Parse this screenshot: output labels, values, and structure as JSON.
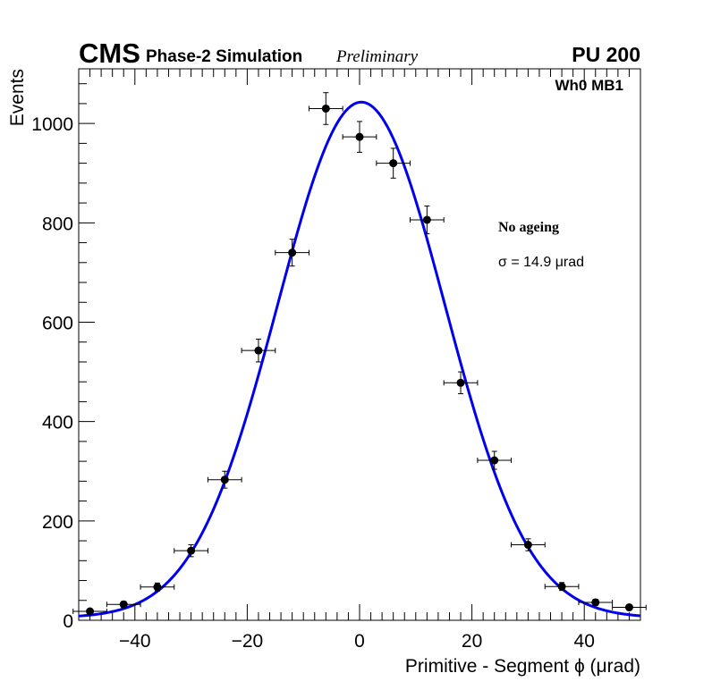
{
  "chart_data": {
    "type": "scatter",
    "experiment": "CMS",
    "subtitle": "Phase-2 Simulation",
    "status": "Preliminary",
    "pileup": "PU 200",
    "region": "Wh0 MB1",
    "condition": "No ageing",
    "sigma_label": "σ = 14.9  μrad",
    "xlabel": "Primitive - Segment ϕ (μrad)",
    "ylabel": "Events",
    "xlim": [
      -50,
      50
    ],
    "ylim": [
      0,
      1110
    ],
    "xticks": [
      -40,
      -20,
      0,
      20,
      40
    ],
    "xtick_labels": [
      "−40",
      "−20",
      "0",
      "20",
      "40"
    ],
    "yticks": [
      0,
      200,
      400,
      600,
      800,
      1000
    ],
    "ytick_labels": [
      "0",
      "200",
      "400",
      "600",
      "800",
      "1000"
    ],
    "bin_width": 6,
    "series": [
      {
        "name": "data",
        "color": "#000000",
        "x": [
          -48,
          -42,
          -36,
          -30,
          -24,
          -18,
          -12,
          -6,
          0,
          6,
          12,
          18,
          24,
          30,
          36,
          42,
          48
        ],
        "y": [
          18,
          32,
          67,
          140,
          283,
          543,
          740,
          1030,
          973,
          920,
          806,
          478,
          322,
          152,
          68,
          36,
          26
        ],
        "yerr": [
          4,
          6,
          8,
          12,
          17,
          23,
          27,
          32,
          31,
          30,
          28,
          22,
          18,
          12,
          8,
          6,
          5
        ]
      },
      {
        "name": "gaussian fit",
        "color": "#0000ee",
        "fit": {
          "amplitude": 1038,
          "mean": 0.3,
          "sigma": 14.9,
          "offset": 5
        }
      }
    ]
  }
}
